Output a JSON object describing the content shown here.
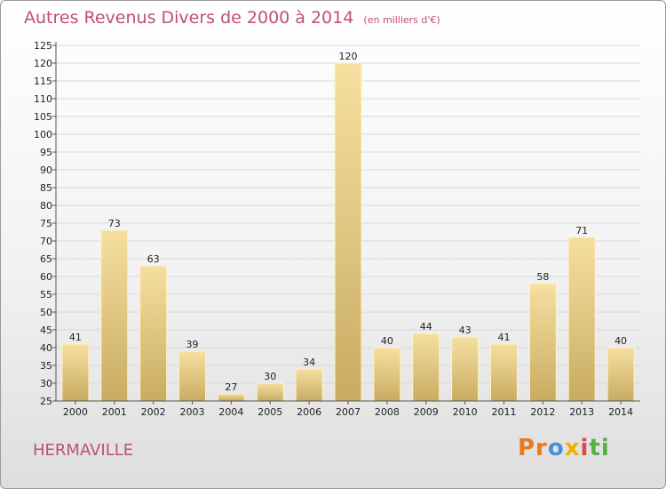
{
  "page": {
    "title": "Autres Revenus Divers de 2000 à 2014",
    "subtitle": "(en milliers d'€)",
    "location": "HERMAVILLE",
    "logo": {
      "p1": "Pr",
      "p2": "o",
      "p3": "x",
      "p4": "i",
      "p5": "ti"
    }
  },
  "colors": {
    "title": "#c0506a",
    "bar_light": "#f6dfa0",
    "bar_dark": "#c9ac62"
  },
  "chart_data": {
    "type": "bar",
    "title": "Autres Revenus Divers de 2000 à 2014",
    "subtitle": "(en milliers d'€)",
    "categories": [
      "2000",
      "2001",
      "2002",
      "2003",
      "2004",
      "2005",
      "2006",
      "2007",
      "2008",
      "2009",
      "2010",
      "2011",
      "2012",
      "2013",
      "2014"
    ],
    "values": [
      41,
      73,
      63,
      39,
      27,
      30,
      34,
      120,
      40,
      44,
      43,
      41,
      58,
      71,
      40
    ],
    "ylim": [
      25,
      125
    ],
    "yticks": [
      25,
      30,
      35,
      40,
      45,
      50,
      55,
      60,
      65,
      70,
      75,
      80,
      85,
      90,
      95,
      100,
      105,
      110,
      115,
      120,
      125
    ],
    "grid": true,
    "legend": "none"
  }
}
